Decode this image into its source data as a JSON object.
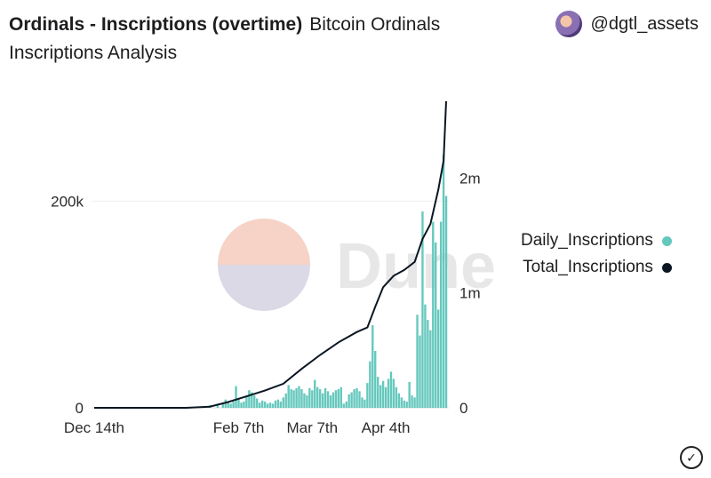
{
  "header": {
    "title": "Ordinals - Inscriptions (overtime)",
    "subtitle": "Bitcoin Ordinals Inscriptions Analysis",
    "author": "@dgtl_assets"
  },
  "watermark": "Dune",
  "icons": {
    "avatar": "avatar-icon",
    "check": "check-circle-icon"
  },
  "colors": {
    "daily": "#65c8bd",
    "total": "#0b1622",
    "grid": "#eeeeee",
    "axis_text": "#2c2c2c"
  },
  "chart_data": {
    "type": "bar",
    "legend_position": "right",
    "xticks": [
      "Dec 14th",
      "Feb 7th",
      "Mar 7th",
      "Apr 4th"
    ],
    "y_left": {
      "ticks": [
        "0",
        "200k"
      ],
      "tick_values": [
        0,
        200000
      ],
      "range": [
        0,
        300000
      ]
    },
    "y_right": {
      "ticks": [
        "0",
        "1m",
        "2m"
      ],
      "tick_values": [
        0,
        1000000,
        2000000
      ],
      "range": [
        0,
        2700000
      ]
    },
    "series": [
      {
        "name": "Daily_Inscriptions",
        "type": "bar",
        "axis": "left",
        "color": "#65c8bd",
        "values": [
          {
            "x": "2022-12-14",
            "y": 0
          },
          {
            "x": "2022-12-21",
            "y": 0
          },
          {
            "x": "2022-12-28",
            "y": 0
          },
          {
            "x": "2023-01-04",
            "y": 0
          },
          {
            "x": "2023-01-11",
            "y": 0
          },
          {
            "x": "2023-01-18",
            "y": 0
          },
          {
            "x": "2023-01-21",
            "y": 600
          },
          {
            "x": "2023-01-24",
            "y": 1200
          },
          {
            "x": "2023-01-27",
            "y": 2500
          },
          {
            "x": "2023-01-30",
            "y": 4000
          },
          {
            "x": "2023-02-01",
            "y": 5000
          },
          {
            "x": "2023-02-02",
            "y": 8000
          },
          {
            "x": "2023-02-03",
            "y": 6000
          },
          {
            "x": "2023-02-04",
            "y": 4000
          },
          {
            "x": "2023-02-05",
            "y": 6000
          },
          {
            "x": "2023-02-06",
            "y": 21000
          },
          {
            "x": "2023-02-07",
            "y": 9000
          },
          {
            "x": "2023-02-08",
            "y": 5000
          },
          {
            "x": "2023-02-09",
            "y": 6000
          },
          {
            "x": "2023-02-10",
            "y": 11000
          },
          {
            "x": "2023-02-11",
            "y": 17000
          },
          {
            "x": "2023-02-12",
            "y": 15000
          },
          {
            "x": "2023-02-13",
            "y": 12000
          },
          {
            "x": "2023-02-14",
            "y": 9000
          },
          {
            "x": "2023-02-15",
            "y": 5000
          },
          {
            "x": "2023-02-16",
            "y": 7000
          },
          {
            "x": "2023-02-17",
            "y": 6000
          },
          {
            "x": "2023-02-18",
            "y": 4000
          },
          {
            "x": "2023-02-19",
            "y": 5000
          },
          {
            "x": "2023-02-20",
            "y": 4000
          },
          {
            "x": "2023-02-21",
            "y": 7000
          },
          {
            "x": "2023-02-22",
            "y": 8000
          },
          {
            "x": "2023-02-23",
            "y": 6000
          },
          {
            "x": "2023-02-24",
            "y": 10000
          },
          {
            "x": "2023-02-25",
            "y": 14000
          },
          {
            "x": "2023-02-26",
            "y": 22000
          },
          {
            "x": "2023-02-27",
            "y": 18000
          },
          {
            "x": "2023-02-28",
            "y": 17000
          },
          {
            "x": "2023-03-01",
            "y": 19000
          },
          {
            "x": "2023-03-02",
            "y": 21000
          },
          {
            "x": "2023-03-03",
            "y": 18000
          },
          {
            "x": "2023-03-04",
            "y": 14000
          },
          {
            "x": "2023-03-05",
            "y": 12000
          },
          {
            "x": "2023-03-06",
            "y": 19000
          },
          {
            "x": "2023-03-07",
            "y": 17000
          },
          {
            "x": "2023-03-08",
            "y": 27000
          },
          {
            "x": "2023-03-09",
            "y": 20000
          },
          {
            "x": "2023-03-10",
            "y": 18000
          },
          {
            "x": "2023-03-11",
            "y": 14000
          },
          {
            "x": "2023-03-12",
            "y": 19000
          },
          {
            "x": "2023-03-13",
            "y": 16000
          },
          {
            "x": "2023-03-14",
            "y": 12000
          },
          {
            "x": "2023-03-15",
            "y": 15000
          },
          {
            "x": "2023-03-16",
            "y": 17000
          },
          {
            "x": "2023-03-17",
            "y": 18000
          },
          {
            "x": "2023-03-18",
            "y": 20000
          },
          {
            "x": "2023-03-19",
            "y": 4000
          },
          {
            "x": "2023-03-20",
            "y": 6000
          },
          {
            "x": "2023-03-21",
            "y": 13000
          },
          {
            "x": "2023-03-22",
            "y": 15000
          },
          {
            "x": "2023-03-23",
            "y": 18000
          },
          {
            "x": "2023-03-24",
            "y": 19000
          },
          {
            "x": "2023-03-25",
            "y": 16000
          },
          {
            "x": "2023-03-26",
            "y": 10000
          },
          {
            "x": "2023-03-27",
            "y": 8000
          },
          {
            "x": "2023-03-28",
            "y": 24000
          },
          {
            "x": "2023-03-29",
            "y": 45000
          },
          {
            "x": "2023-03-30",
            "y": 80000
          },
          {
            "x": "2023-03-31",
            "y": 55000
          },
          {
            "x": "2023-04-01",
            "y": 30000
          },
          {
            "x": "2023-04-02",
            "y": 22000
          },
          {
            "x": "2023-04-03",
            "y": 26000
          },
          {
            "x": "2023-04-04",
            "y": 20000
          },
          {
            "x": "2023-04-05",
            "y": 28000
          },
          {
            "x": "2023-04-06",
            "y": 35000
          },
          {
            "x": "2023-04-07",
            "y": 28000
          },
          {
            "x": "2023-04-08",
            "y": 20000
          },
          {
            "x": "2023-04-09",
            "y": 14000
          },
          {
            "x": "2023-04-10",
            "y": 10000
          },
          {
            "x": "2023-04-11",
            "y": 7000
          },
          {
            "x": "2023-04-12",
            "y": 6000
          },
          {
            "x": "2023-04-13",
            "y": 25000
          },
          {
            "x": "2023-04-14",
            "y": 12000
          },
          {
            "x": "2023-04-15",
            "y": 10000
          },
          {
            "x": "2023-04-16",
            "y": 90000
          },
          {
            "x": "2023-04-17",
            "y": 70000
          },
          {
            "x": "2023-04-18",
            "y": 190000
          },
          {
            "x": "2023-04-19",
            "y": 100000
          },
          {
            "x": "2023-04-20",
            "y": 85000
          },
          {
            "x": "2023-04-21",
            "y": 75000
          },
          {
            "x": "2023-04-22",
            "y": 180000
          },
          {
            "x": "2023-04-23",
            "y": 160000
          },
          {
            "x": "2023-04-24",
            "y": 95000
          },
          {
            "x": "2023-04-25",
            "y": 180000
          },
          {
            "x": "2023-04-26",
            "y": 245000
          },
          {
            "x": "2023-04-27",
            "y": 205000
          }
        ]
      },
      {
        "name": "Total_Inscriptions",
        "type": "line",
        "axis": "right",
        "color": "#0b1622",
        "values": [
          {
            "x": "2022-12-14",
            "y": 0
          },
          {
            "x": "2023-01-18",
            "y": 0
          },
          {
            "x": "2023-01-27",
            "y": 10000
          },
          {
            "x": "2023-02-03",
            "y": 50000
          },
          {
            "x": "2023-02-10",
            "y": 100000
          },
          {
            "x": "2023-02-17",
            "y": 150000
          },
          {
            "x": "2023-02-24",
            "y": 210000
          },
          {
            "x": "2023-03-03",
            "y": 340000
          },
          {
            "x": "2023-03-10",
            "y": 460000
          },
          {
            "x": "2023-03-17",
            "y": 570000
          },
          {
            "x": "2023-03-24",
            "y": 660000
          },
          {
            "x": "2023-03-28",
            "y": 700000
          },
          {
            "x": "2023-03-31",
            "y": 880000
          },
          {
            "x": "2023-04-03",
            "y": 1050000
          },
          {
            "x": "2023-04-07",
            "y": 1150000
          },
          {
            "x": "2023-04-11",
            "y": 1200000
          },
          {
            "x": "2023-04-15",
            "y": 1270000
          },
          {
            "x": "2023-04-18",
            "y": 1470000
          },
          {
            "x": "2023-04-21",
            "y": 1600000
          },
          {
            "x": "2023-04-24",
            "y": 1900000
          },
          {
            "x": "2023-04-26",
            "y": 2150000
          },
          {
            "x": "2023-04-27",
            "y": 2670000
          }
        ]
      }
    ]
  }
}
